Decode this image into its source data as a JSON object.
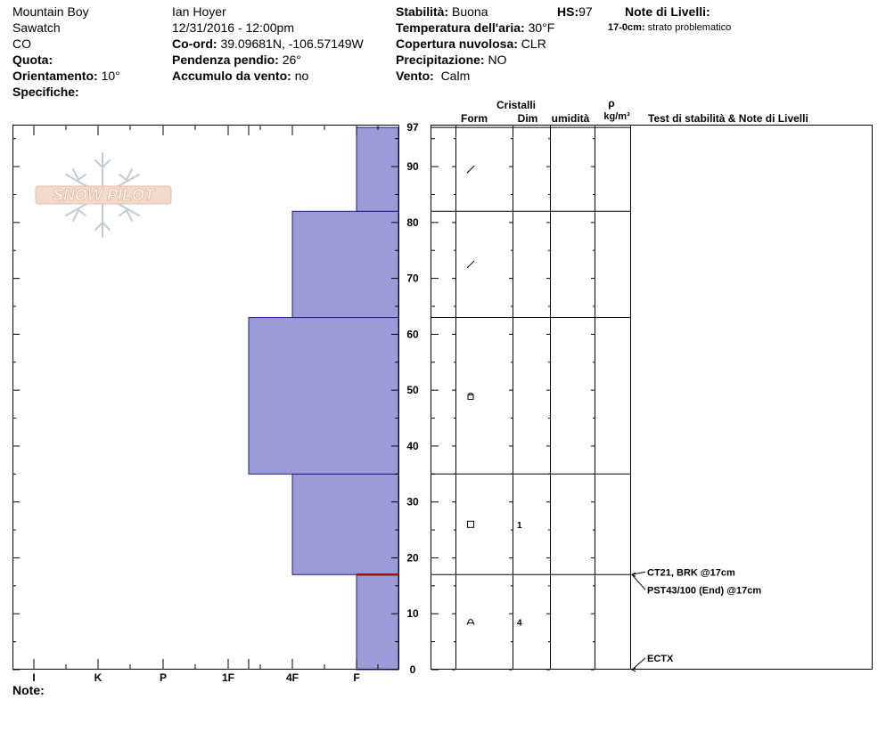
{
  "location": {
    "name": "Mountain Boy",
    "range": "Sawatch",
    "state": "CO"
  },
  "labels": {
    "quota": "Quota:",
    "orientamento": "Orientamento:",
    "specifiche": "Specifiche:",
    "coord": "Co-ord:",
    "pendenza": "Pendenza pendio:",
    "accumulo": "Accumulo da vento:",
    "stabilita": "Stabilità:",
    "temperatura": "Temperatura dell'aria:",
    "copertura": "Copertura nuvolosa:",
    "precipitazione": "Precipitazione:",
    "vento": "Vento:",
    "hs": "HS:",
    "note_livelli": "Note di Livelli:",
    "note": "Note:"
  },
  "values": {
    "orientamento": "10°",
    "observer": "Ian Hoyer",
    "datetime": "12/31/2016 - 12:00pm",
    "coord": "39.09681N, -106.57149W",
    "pendenza": "26°",
    "accumulo": "no",
    "stabilita": "Buona",
    "temperatura": "30°F",
    "copertura": "CLR",
    "precipitazione": "NO",
    "vento": "Calm",
    "hs": "97"
  },
  "layer_notes": [
    {
      "depth": "17-0cm:",
      "text": "strato problematico"
    }
  ],
  "column_headers": {
    "cristalli": "Cristalli",
    "form": "Form",
    "dim": "Dim",
    "umidita": "umidità",
    "rho": "ρ",
    "density_unit": "kg/m³",
    "tests": "Test di stabilità & Note di Livelli"
  },
  "logo_text": "SNOW PILOT",
  "colors": {
    "layer_fill": "#9b9bd8",
    "layer_stroke": "#1e1e8c",
    "problem_layer": "#a01010"
  },
  "chart_data": {
    "type": "bar",
    "hardness_scale": [
      "I",
      "K",
      "P",
      "1F",
      "4F",
      "F"
    ],
    "ylim": [
      0,
      97
    ],
    "y_ticks": [
      0,
      10,
      20,
      30,
      40,
      50,
      60,
      70,
      80,
      90,
      97
    ],
    "layers": [
      {
        "bottom": 0,
        "top": 17,
        "hardness": "F",
        "form": "precipitation-particles-icon",
        "dim": "4"
      },
      {
        "bottom": 17,
        "top": 35,
        "hardness": "4F",
        "form": "faceted-crystal-icon",
        "dim": "1"
      },
      {
        "bottom": 35,
        "top": 63,
        "hardness": "1F+",
        "form": "rounding-facets-icon",
        "dim": ""
      },
      {
        "bottom": 63,
        "top": 82,
        "hardness": "4F",
        "form": "decomposing-fragments-icon",
        "dim": ""
      },
      {
        "bottom": 82,
        "top": 97,
        "hardness": "F",
        "form": "decomposing-fragments-icon",
        "dim": ""
      }
    ],
    "problem_layer_depth": 17,
    "tests": [
      {
        "depth": 17,
        "text": "CT21, BRK @17cm"
      },
      {
        "depth": 17,
        "text": "PST43/100 (End) @17cm"
      },
      {
        "depth": 0,
        "text": "ECTX"
      }
    ]
  }
}
